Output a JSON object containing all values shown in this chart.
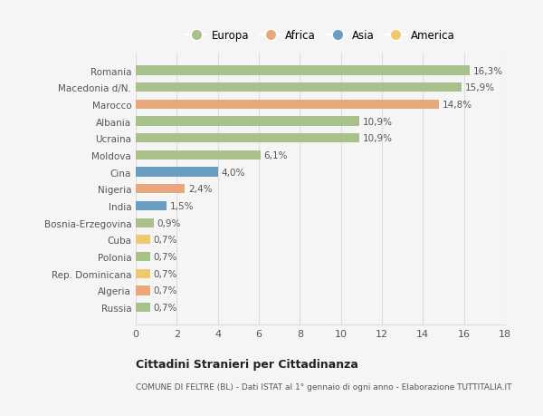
{
  "categories": [
    "Russia",
    "Algeria",
    "Rep. Dominicana",
    "Polonia",
    "Cuba",
    "Bosnia-Erzegovina",
    "India",
    "Nigeria",
    "Cina",
    "Moldova",
    "Ucraina",
    "Albania",
    "Marocco",
    "Macedonia d/N.",
    "Romania"
  ],
  "values": [
    0.7,
    0.7,
    0.7,
    0.7,
    0.7,
    0.9,
    1.5,
    2.4,
    4.0,
    6.1,
    10.9,
    10.9,
    14.8,
    15.9,
    16.3
  ],
  "continents": [
    "Europa",
    "Africa",
    "America",
    "Europa",
    "America",
    "Europa",
    "Asia",
    "Africa",
    "Asia",
    "Europa",
    "Europa",
    "Europa",
    "Africa",
    "Europa",
    "Europa"
  ],
  "labels": [
    "0,7%",
    "0,7%",
    "0,7%",
    "0,7%",
    "0,7%",
    "0,9%",
    "1,5%",
    "2,4%",
    "4,0%",
    "6,1%",
    "10,9%",
    "10,9%",
    "14,8%",
    "15,9%",
    "16,3%"
  ],
  "colors": {
    "Europa": "#a8c08a",
    "Africa": "#e8a87c",
    "Asia": "#6b9dc2",
    "America": "#f0c870"
  },
  "legend_order": [
    "Europa",
    "Africa",
    "Asia",
    "America"
  ],
  "bg_color": "#f5f5f5",
  "title": "Cittadini Stranieri per Cittadinanza",
  "subtitle": "COMUNE DI FELTRE (BL) - Dati ISTAT al 1° gennaio di ogni anno - Elaborazione TUTTITALIA.IT",
  "xlim": [
    0,
    18
  ],
  "xticks": [
    0,
    2,
    4,
    6,
    8,
    10,
    12,
    14,
    16,
    18
  ],
  "bar_height": 0.55,
  "grid_color": "#dddddd",
  "text_color": "#555555",
  "label_fontsize": 7.5,
  "ytick_fontsize": 7.5,
  "xtick_fontsize": 8
}
